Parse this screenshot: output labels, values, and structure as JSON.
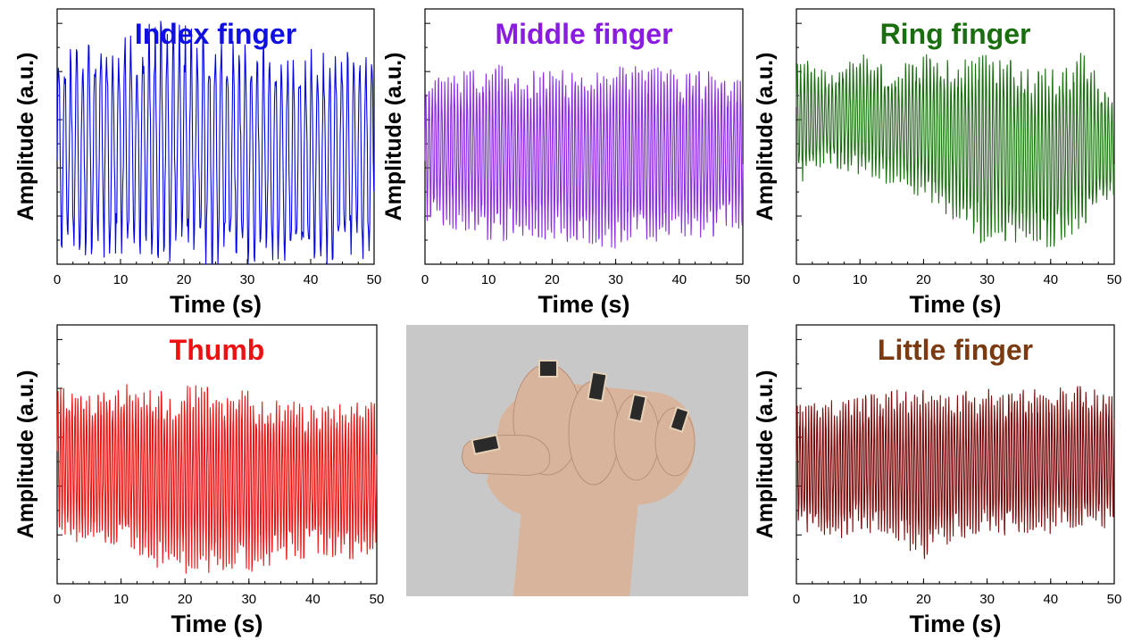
{
  "chart_data": [
    {
      "type": "line",
      "title": "Index finger",
      "title_color": "#1010e0",
      "line_color": "#0000ee",
      "xlabel": "Time (s)",
      "ylabel": "Amplitude (a.u.)",
      "xlim": [
        0,
        50
      ],
      "xticks": [
        "0",
        "10",
        "20",
        "30",
        "40",
        "50"
      ],
      "ylim": [
        0,
        1
      ],
      "series": [
        {
          "period_s": 0.95,
          "x": [
            0,
            5,
            10,
            15,
            20,
            25,
            30,
            35,
            40,
            45,
            50
          ],
          "max": [
            0.79,
            0.83,
            0.81,
            0.88,
            0.86,
            0.82,
            0.79,
            0.78,
            0.77,
            0.78,
            0.79
          ],
          "min": [
            0.11,
            0.1,
            0.09,
            0.1,
            0.08,
            0.06,
            0.05,
            0.04,
            0.03,
            0.09,
            0.08
          ]
        }
      ]
    },
    {
      "type": "line",
      "title": "Middle finger",
      "title_color": "#8a1be0",
      "line_color": "#8a2be2",
      "xlabel": "Time (s)",
      "ylabel": "Amplitude (a.u.)",
      "xlim": [
        0,
        50
      ],
      "xticks": [
        "0",
        "10",
        "20",
        "30",
        "40",
        "50"
      ],
      "ylim": [
        0,
        1
      ],
      "series": [
        {
          "period_s": 0.5,
          "x": [
            0,
            5,
            10,
            15,
            20,
            25,
            30,
            35,
            40,
            45,
            50
          ],
          "max": [
            0.68,
            0.7,
            0.74,
            0.7,
            0.71,
            0.7,
            0.72,
            0.72,
            0.71,
            0.7,
            0.68
          ],
          "min": [
            0.22,
            0.18,
            0.14,
            0.16,
            0.15,
            0.13,
            0.12,
            0.14,
            0.15,
            0.16,
            0.19
          ]
        }
      ]
    },
    {
      "type": "line",
      "title": "Ring finger",
      "title_color": "#1a6e10",
      "line_color": "#1a6e10",
      "xlabel": "Time (s)",
      "ylabel": "Amplitude (a.u.)",
      "xlim": [
        0,
        50
      ],
      "xticks": [
        "0",
        "10",
        "20",
        "30",
        "40",
        "50"
      ],
      "ylim": [
        0,
        1
      ],
      "series": [
        {
          "period_s": 0.55,
          "x": [
            0,
            5,
            10,
            15,
            20,
            25,
            30,
            35,
            40,
            45,
            50
          ],
          "max": [
            0.78,
            0.72,
            0.8,
            0.72,
            0.78,
            0.74,
            0.8,
            0.75,
            0.7,
            0.78,
            0.6
          ],
          "min": [
            0.35,
            0.42,
            0.38,
            0.35,
            0.3,
            0.22,
            0.12,
            0.15,
            0.12,
            0.2,
            0.3
          ]
        }
      ]
    },
    {
      "type": "line",
      "title": "Thumb",
      "title_color": "#ee1111",
      "line_color": "#ee1111",
      "xlabel": "Time (s)",
      "ylabel": "Amplitude (a.u.)",
      "xlim": [
        0,
        50
      ],
      "xticks": [
        "0",
        "10",
        "20",
        "30",
        "40",
        "50"
      ],
      "ylim": [
        0,
        1
      ],
      "series": [
        {
          "period_s": 0.45,
          "x": [
            0,
            5,
            10,
            15,
            20,
            25,
            30,
            35,
            40,
            45,
            50
          ],
          "max": [
            0.72,
            0.68,
            0.72,
            0.7,
            0.71,
            0.7,
            0.69,
            0.66,
            0.64,
            0.65,
            0.66
          ],
          "min": [
            0.22,
            0.2,
            0.18,
            0.12,
            0.1,
            0.1,
            0.1,
            0.14,
            0.15,
            0.14,
            0.16
          ]
        }
      ]
    },
    {
      "type": "line",
      "title": "Little finger",
      "title_color": "#7a3a12",
      "line_color": "#7a0a0a",
      "xlabel": "Time (s)",
      "ylabel": "Amplitude (a.u.)",
      "xlim": [
        0,
        50
      ],
      "xticks": [
        "0",
        "10",
        "20",
        "30",
        "40",
        "50"
      ],
      "ylim": [
        0,
        1
      ],
      "series": [
        {
          "period_s": 0.45,
          "x": [
            0,
            5,
            10,
            15,
            20,
            25,
            30,
            35,
            40,
            45,
            50
          ],
          "max": [
            0.65,
            0.66,
            0.68,
            0.7,
            0.7,
            0.69,
            0.71,
            0.7,
            0.71,
            0.72,
            0.7
          ],
          "min": [
            0.25,
            0.2,
            0.25,
            0.22,
            0.15,
            0.22,
            0.24,
            0.23,
            0.24,
            0.25,
            0.26
          ]
        }
      ]
    }
  ],
  "photo": {
    "background_color": "#c8c8c8",
    "skin_color": "#d9b49c",
    "sensor_color": "#2a2a2a"
  }
}
